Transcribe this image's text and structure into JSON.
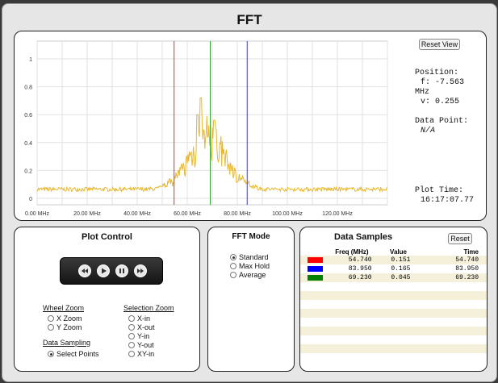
{
  "app": {
    "title": "FFT"
  },
  "plot": {
    "y_ticks": [
      "1",
      "0.8",
      "0.6",
      "0.4",
      "0.2",
      "0"
    ],
    "x_ticks": [
      "0.00 MHz",
      "20.00 MHz",
      "40.00 MHz",
      "60.00 MHz",
      "80.00 MHz",
      "100.00 MHz",
      "120.00 MHz"
    ],
    "markers": [
      {
        "freq": 54.74,
        "color": "#e03030"
      },
      {
        "freq": 69.23,
        "color": "#2a9a2a"
      },
      {
        "freq": 83.95,
        "color": "#3a3ae0"
      }
    ],
    "trace_color": "#e8b830",
    "x_max_mhz": 140,
    "y_max": 1.1
  },
  "info": {
    "reset_view_label": "Reset View",
    "position_label": "Position:",
    "position_f": "f: -7.563",
    "position_unit": "MHz",
    "position_v": "v: 0.255",
    "data_point_label": "Data Point:",
    "data_point_value": "N/A",
    "plot_time_label": "Plot Time:",
    "plot_time_value": "16:17:07.77"
  },
  "plot_control": {
    "title": "Plot Control",
    "wheel_zoom": {
      "heading": "Wheel Zoom",
      "options": [
        "X Zoom",
        "Y Zoom"
      ],
      "selected": -1
    },
    "data_sampling": {
      "heading": "Data Sampling",
      "options": [
        "Select Points"
      ],
      "selected": 0
    },
    "selection_zoom": {
      "heading": "Selection Zoom",
      "options": [
        "X-in",
        "X-out",
        "Y-in",
        "Y-out",
        "XY-in"
      ],
      "selected": -1
    },
    "transport_icons": [
      "rewind-icon",
      "play-icon",
      "pause-icon",
      "fast-forward-icon"
    ]
  },
  "fft_mode": {
    "title": "FFT Mode",
    "options": [
      "Standard",
      "Max Hold",
      "Average"
    ],
    "selected": 0
  },
  "samples": {
    "title": "Data Samples",
    "reset_label": "Reset",
    "columns": [
      "",
      "Freq (MHz)",
      "Value",
      "Time"
    ],
    "rows": [
      {
        "color": "#ff0000",
        "freq": "54.740",
        "value": "0.151",
        "time": "54.740"
      },
      {
        "color": "#0000ff",
        "freq": "83.950",
        "value": "0.165",
        "time": "83.950"
      },
      {
        "color": "#008000",
        "freq": "69.230",
        "value": "0.045",
        "time": "69.230"
      }
    ]
  }
}
